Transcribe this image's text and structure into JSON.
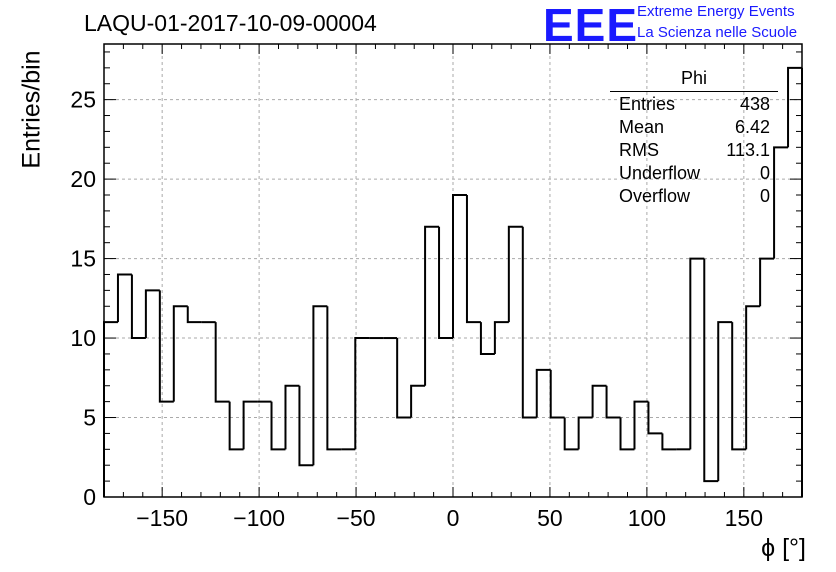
{
  "chart_data": {
    "type": "bar",
    "title": "LAQU-01-2017-10-09-00004",
    "xlabel": "ϕ [°]",
    "ylabel": "Entries/bin",
    "xlim": [
      -180,
      180
    ],
    "ylim": [
      0,
      28.5
    ],
    "x_ticks": [
      -150,
      -100,
      -50,
      0,
      50,
      100,
      150
    ],
    "y_ticks": [
      0,
      5,
      10,
      15,
      20,
      25
    ],
    "bin_width": 7.2,
    "values": [
      11,
      14,
      10,
      13,
      6,
      12,
      11,
      11,
      6,
      3,
      6,
      6,
      3,
      7,
      2,
      12,
      3,
      3,
      10,
      10,
      10,
      5,
      7,
      17,
      10,
      19,
      11,
      9,
      11,
      17,
      5,
      8,
      5,
      3,
      5,
      7,
      5,
      3,
      6,
      4,
      3,
      3,
      15,
      1,
      11,
      3,
      12,
      15,
      22,
      27
    ],
    "grid": true,
    "stats": {
      "title": "Phi",
      "rows": [
        {
          "label": "Entries",
          "value": "438"
        },
        {
          "label": "Mean",
          "value": "6.42"
        },
        {
          "label": "RMS",
          "value": "113.1"
        },
        {
          "label": "Underflow",
          "value": "0"
        },
        {
          "label": "Overflow",
          "value": "0"
        }
      ]
    }
  },
  "logo": {
    "mark": "EEE",
    "line1": "Extreme Energy Events",
    "line2": "La Scienza nelle Scuole",
    "color": "#1a1aff"
  }
}
